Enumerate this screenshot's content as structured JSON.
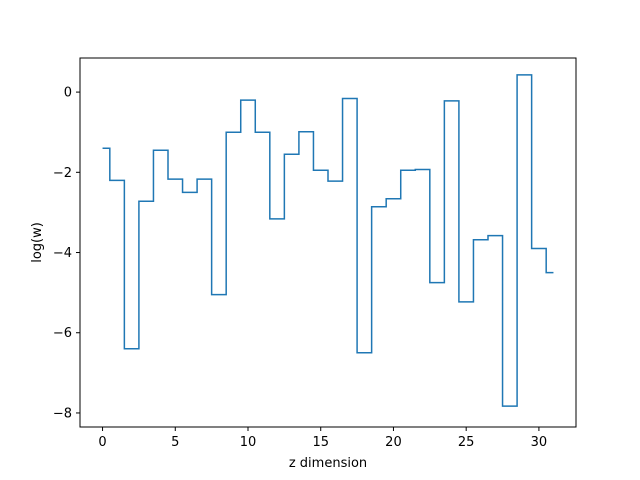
{
  "chart_data": {
    "type": "line",
    "drawstyle": "steps-mid",
    "title": "",
    "xlabel": "z dimension",
    "ylabel": "log(w)",
    "xlim": [
      -1.55,
      32.55
    ],
    "ylim": [
      -8.35,
      0.85
    ],
    "xticks": [
      0,
      5,
      10,
      15,
      20,
      25,
      30
    ],
    "yticks": [
      -8,
      -6,
      -4,
      -2,
      0
    ],
    "ytick_labels": [
      "−8",
      "−6",
      "−4",
      "−2",
      "0"
    ],
    "grid": false,
    "color": "#1f77b4",
    "series": [
      {
        "x": [
          0,
          1,
          2,
          3,
          4,
          5,
          6,
          7,
          8,
          9,
          10,
          11,
          12,
          13,
          14,
          15,
          16,
          17,
          18,
          19,
          20,
          21,
          22,
          23,
          24,
          25,
          26,
          27,
          28,
          29,
          30,
          31
        ],
        "y": [
          -1.4,
          -2.2,
          -6.4,
          -2.72,
          -1.45,
          -2.17,
          -2.5,
          -2.17,
          -5.05,
          -1.0,
          -0.2,
          -1.0,
          -3.16,
          -1.55,
          -0.99,
          -1.95,
          -2.22,
          -0.16,
          -6.5,
          -2.86,
          -2.66,
          -1.95,
          -1.93,
          -4.75,
          -0.22,
          -5.23,
          -3.68,
          -3.58,
          -7.83,
          0.43,
          -3.9,
          -4.5
        ]
      }
    ]
  }
}
